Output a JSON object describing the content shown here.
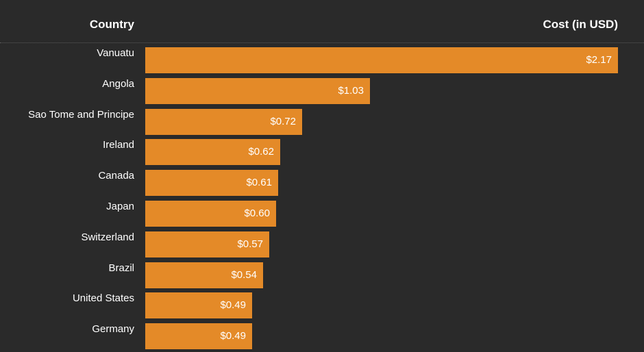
{
  "header": {
    "country_label": "Country",
    "cost_label": "Cost (in USD)"
  },
  "colors": {
    "background": "#2a2a2a",
    "bar": "#e48a28",
    "text": "#ffffff"
  },
  "chart_data": {
    "type": "bar",
    "orientation": "horizontal",
    "categories": [
      "Vanuatu",
      "Angola",
      "Sao Tome and Principe",
      "Ireland",
      "Canada",
      "Japan",
      "Switzerland",
      "Brazil",
      "United States",
      "Germany"
    ],
    "values": [
      2.17,
      1.03,
      0.72,
      0.62,
      0.61,
      0.6,
      0.57,
      0.54,
      0.49,
      0.49
    ],
    "value_labels": [
      "$2.17",
      "$1.03",
      "$0.72",
      "$0.62",
      "$0.61",
      "$0.60",
      "$0.57",
      "$0.54",
      "$0.49",
      "$0.49"
    ],
    "xlabel": "Cost (in USD)",
    "ylabel": "Country",
    "xlim": [
      0,
      2.17
    ],
    "grid": false
  }
}
